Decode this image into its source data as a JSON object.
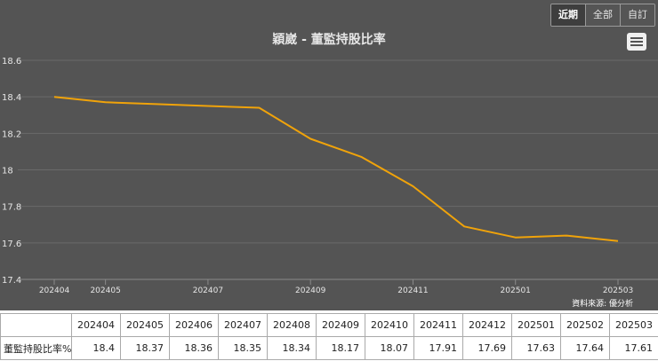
{
  "range_buttons": [
    "近期",
    "全部",
    "自訂"
  ],
  "source_note": "資料來源: 優分析",
  "colors": {
    "background": "#545454",
    "line": "#f0a30a",
    "grid": "#6a6a6a"
  },
  "chart_data": {
    "type": "line",
    "title": "穎崴 - 董監持股比率",
    "categories": [
      "202404",
      "202405",
      "202406",
      "202407",
      "202408",
      "202409",
      "202410",
      "202411",
      "202412",
      "202501",
      "202502",
      "202503"
    ],
    "x_tick_labels": [
      "202404",
      "202405",
      "202407",
      "202409",
      "202411",
      "202501",
      "202503"
    ],
    "series": [
      {
        "values": [
          18.4,
          18.37,
          18.36,
          18.35,
          18.34,
          18.17,
          18.07,
          17.91,
          17.69,
          17.63,
          17.64,
          17.61
        ]
      }
    ],
    "y_ticks": [
      17.4,
      17.6,
      17.8,
      18,
      18.2,
      18.4,
      18.6
    ],
    "ylim": [
      17.4,
      18.6
    ],
    "grid": true,
    "legend": "none"
  },
  "table": {
    "header": [
      "",
      "202404",
      "202405",
      "202406",
      "202407",
      "202408",
      "202409",
      "202410",
      "202411",
      "202412",
      "202501",
      "202502",
      "202503"
    ],
    "row_label": "董監持股比率%",
    "row_values": [
      "18.4",
      "18.37",
      "18.36",
      "18.35",
      "18.34",
      "18.17",
      "18.07",
      "17.91",
      "17.69",
      "17.63",
      "17.64",
      "17.61"
    ]
  }
}
